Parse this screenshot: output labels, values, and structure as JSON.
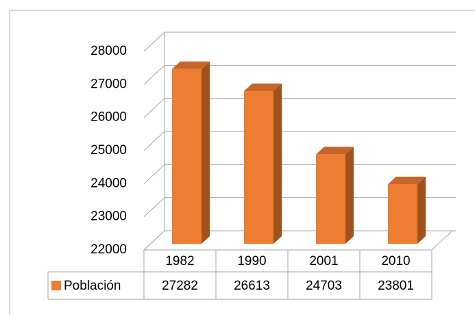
{
  "chart_data": {
    "type": "bar3d",
    "categories": [
      "1982",
      "1990",
      "2001",
      "2010"
    ],
    "series": [
      {
        "name": "Población",
        "color": "#ED7D31",
        "values": [
          27282,
          26613,
          24703,
          23801
        ]
      }
    ],
    "ylim": [
      22000,
      28000
    ],
    "yticks": [
      22000,
      23000,
      24000,
      25000,
      26000,
      27000,
      28000
    ],
    "grid": true,
    "data_table": true
  }
}
